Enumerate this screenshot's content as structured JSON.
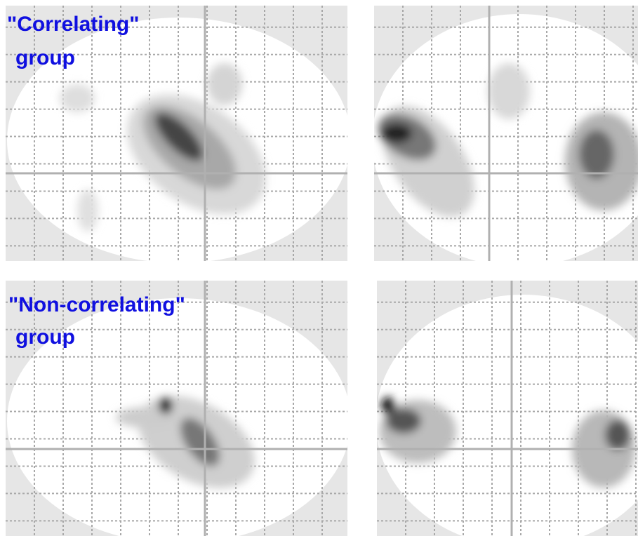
{
  "figure": {
    "groups": [
      {
        "name": "\"Correlating\"",
        "suffix": "group"
      },
      {
        "name": "\"Non-correlating\"",
        "suffix": "group"
      }
    ]
  }
}
